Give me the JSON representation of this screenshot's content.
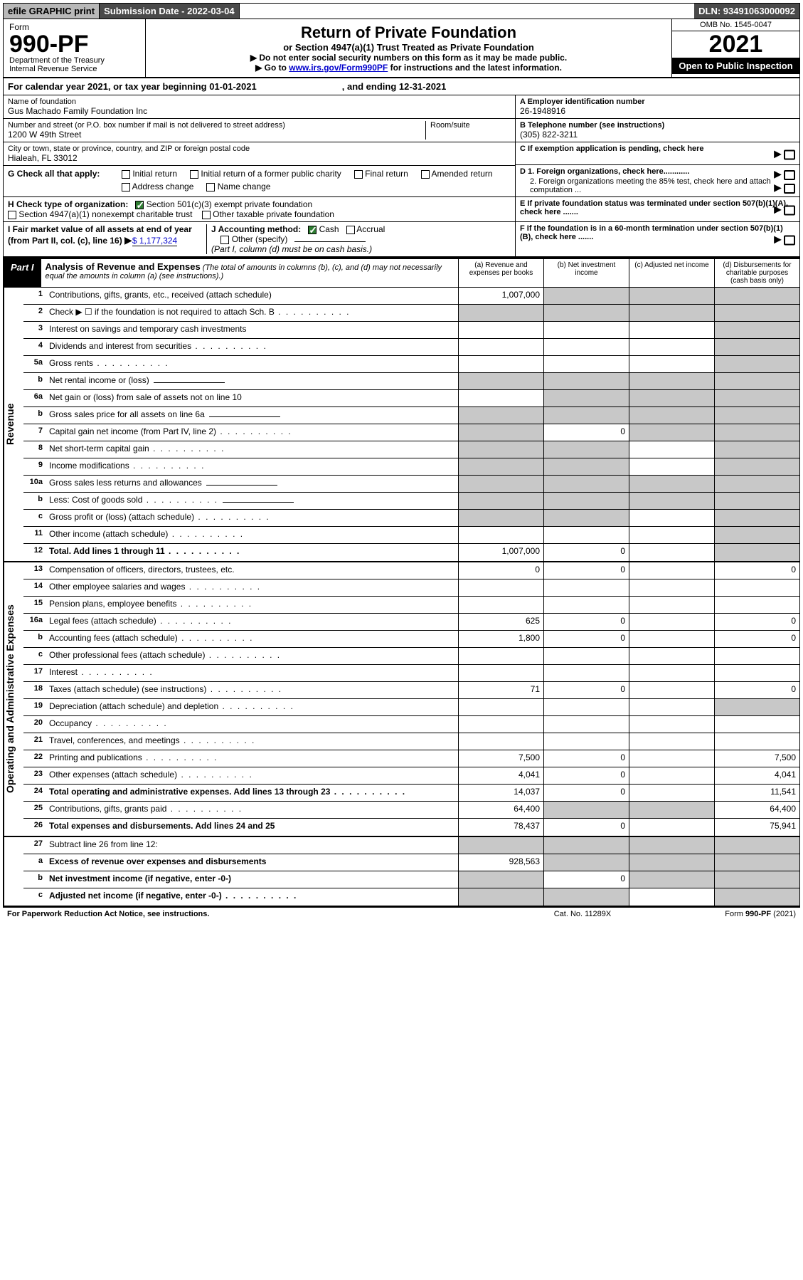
{
  "topbar": {
    "efile": "efile GRAPHIC print",
    "submission_label": "Submission Date - 2022-03-04",
    "dln": "DLN: 93491063000092"
  },
  "header": {
    "form_word": "Form",
    "form_num": "990-PF",
    "dept": "Department of the Treasury",
    "irs": "Internal Revenue Service",
    "title": "Return of Private Foundation",
    "subtitle": "or Section 4947(a)(1) Trust Treated as Private Foundation",
    "note1": "▶ Do not enter social security numbers on this form as it may be made public.",
    "note2_pre": "▶ Go to ",
    "note2_link": "www.irs.gov/Form990PF",
    "note2_post": " for instructions and the latest information.",
    "omb": "OMB No. 1545-0047",
    "year": "2021",
    "open": "Open to Public Inspection"
  },
  "calendar": {
    "text": "For calendar year 2021, or tax year beginning 01-01-2021",
    "ending": ", and ending 12-31-2021"
  },
  "identity": {
    "name_label": "Name of foundation",
    "name": "Gus Machado Family Foundation Inc",
    "addr_label": "Number and street (or P.O. box number if mail is not delivered to street address)",
    "addr": "1200 W 49th Street",
    "room_label": "Room/suite",
    "city_label": "City or town, state or province, country, and ZIP or foreign postal code",
    "city": "Hialeah, FL  33012",
    "a_label": "A Employer identification number",
    "a_val": "26-1948916",
    "b_label": "B Telephone number (see instructions)",
    "b_val": "(305) 822-3211",
    "c_label": "C If exemption application is pending, check here",
    "d1_label": "D 1. Foreign organizations, check here............",
    "d2_label": "2. Foreign organizations meeting the 85% test, check here and attach computation ...",
    "e_label": "E  If private foundation status was terminated under section 507(b)(1)(A), check here .......",
    "f_label": "F  If the foundation is in a 60-month termination under section 507(b)(1)(B), check here ......."
  },
  "g": {
    "label": "G Check all that apply:",
    "opts": [
      "Initial return",
      "Final return",
      "Address change",
      "Initial return of a former public charity",
      "Amended return",
      "Name change"
    ]
  },
  "h": {
    "label": "H Check type of organization:",
    "o1": "Section 501(c)(3) exempt private foundation",
    "o2": "Section 4947(a)(1) nonexempt charitable trust",
    "o3": "Other taxable private foundation"
  },
  "i": {
    "label": "I Fair market value of all assets at end of year (from Part II, col. (c), line 16)",
    "val": "$  1,177,324"
  },
  "j": {
    "label": "J Accounting method:",
    "o1": "Cash",
    "o2": "Accrual",
    "o3": "Other (specify)",
    "note": "(Part I, column (d) must be on cash basis.)"
  },
  "part1": {
    "tag": "Part I",
    "title": "Analysis of Revenue and Expenses",
    "sub": "(The total of amounts in columns (b), (c), and (d) may not necessarily equal the amounts in column (a) (see instructions).)",
    "cols": {
      "a": "(a)   Revenue and expenses per books",
      "b": "(b)   Net investment income",
      "c": "(c)   Adjusted net income",
      "d": "(d)   Disbursements for charitable purposes (cash basis only)"
    }
  },
  "sections": {
    "revenue": "Revenue",
    "expenses": "Operating and Administrative Expenses"
  },
  "rows": [
    {
      "n": "1",
      "l": "Contributions, gifts, grants, etc., received (attach schedule)",
      "a": "1,007,000",
      "b": "shade",
      "c": "shade",
      "d": "shade"
    },
    {
      "n": "2",
      "l": "Check ▶ ☐ if the foundation is not required to attach Sch. B",
      "dot": 1,
      "a": "shade",
      "b": "shade",
      "c": "shade",
      "d": "shade"
    },
    {
      "n": "3",
      "l": "Interest on savings and temporary cash investments",
      "a": "",
      "b": "",
      "c": "",
      "d": "shade"
    },
    {
      "n": "4",
      "l": "Dividends and interest from securities",
      "dot": 1,
      "a": "",
      "b": "",
      "c": "",
      "d": "shade"
    },
    {
      "n": "5a",
      "l": "Gross rents",
      "dot": 1,
      "a": "",
      "b": "",
      "c": "",
      "d": "shade"
    },
    {
      "n": "b",
      "l": "Net rental income or (loss)",
      "inner": 1,
      "a": "shade",
      "b": "shade",
      "c": "shade",
      "d": "shade"
    },
    {
      "n": "6a",
      "l": "Net gain or (loss) from sale of assets not on line 10",
      "a": "",
      "b": "shade",
      "c": "shade",
      "d": "shade"
    },
    {
      "n": "b",
      "l": "Gross sales price for all assets on line 6a",
      "inner": 1,
      "a": "shade",
      "b": "shade",
      "c": "shade",
      "d": "shade"
    },
    {
      "n": "7",
      "l": "Capital gain net income (from Part IV, line 2)",
      "dot": 1,
      "a": "shade",
      "b": "0",
      "c": "shade",
      "d": "shade"
    },
    {
      "n": "8",
      "l": "Net short-term capital gain",
      "dot": 1,
      "a": "shade",
      "b": "shade",
      "c": "",
      "d": "shade"
    },
    {
      "n": "9",
      "l": "Income modifications",
      "dot": 1,
      "a": "shade",
      "b": "shade",
      "c": "",
      "d": "shade"
    },
    {
      "n": "10a",
      "l": "Gross sales less returns and allowances",
      "inner": 1,
      "a": "shade",
      "b": "shade",
      "c": "shade",
      "d": "shade"
    },
    {
      "n": "b",
      "l": "Less: Cost of goods sold",
      "dot": 1,
      "inner": 1,
      "a": "shade",
      "b": "shade",
      "c": "shade",
      "d": "shade"
    },
    {
      "n": "c",
      "l": "Gross profit or (loss) (attach schedule)",
      "dot": 1,
      "a": "shade",
      "b": "shade",
      "c": "",
      "d": "shade"
    },
    {
      "n": "11",
      "l": "Other income (attach schedule)",
      "dot": 1,
      "a": "",
      "b": "",
      "c": "",
      "d": "shade"
    },
    {
      "n": "12",
      "l": "Total. Add lines 1 through 11",
      "bold": 1,
      "dot": 1,
      "a": "1,007,000",
      "b": "0",
      "c": "",
      "d": "shade"
    }
  ],
  "rows_exp": [
    {
      "n": "13",
      "l": "Compensation of officers, directors, trustees, etc.",
      "a": "0",
      "b": "0",
      "c": "",
      "d": "0"
    },
    {
      "n": "14",
      "l": "Other employee salaries and wages",
      "dot": 1,
      "a": "",
      "b": "",
      "c": "",
      "d": ""
    },
    {
      "n": "15",
      "l": "Pension plans, employee benefits",
      "dot": 1,
      "a": "",
      "b": "",
      "c": "",
      "d": ""
    },
    {
      "n": "16a",
      "l": "Legal fees (attach schedule)",
      "dot": 1,
      "a": "625",
      "b": "0",
      "c": "",
      "d": "0"
    },
    {
      "n": "b",
      "l": "Accounting fees (attach schedule)",
      "dot": 1,
      "a": "1,800",
      "b": "0",
      "c": "",
      "d": "0"
    },
    {
      "n": "c",
      "l": "Other professional fees (attach schedule)",
      "dot": 1,
      "a": "",
      "b": "",
      "c": "",
      "d": ""
    },
    {
      "n": "17",
      "l": "Interest",
      "dot": 1,
      "a": "",
      "b": "",
      "c": "",
      "d": ""
    },
    {
      "n": "18",
      "l": "Taxes (attach schedule) (see instructions)",
      "dot": 1,
      "a": "71",
      "b": "0",
      "c": "",
      "d": "0"
    },
    {
      "n": "19",
      "l": "Depreciation (attach schedule) and depletion",
      "dot": 1,
      "a": "",
      "b": "",
      "c": "",
      "d": "shade"
    },
    {
      "n": "20",
      "l": "Occupancy",
      "dot": 1,
      "a": "",
      "b": "",
      "c": "",
      "d": ""
    },
    {
      "n": "21",
      "l": "Travel, conferences, and meetings",
      "dot": 1,
      "a": "",
      "b": "",
      "c": "",
      "d": ""
    },
    {
      "n": "22",
      "l": "Printing and publications",
      "dot": 1,
      "a": "7,500",
      "b": "0",
      "c": "",
      "d": "7,500"
    },
    {
      "n": "23",
      "l": "Other expenses (attach schedule)",
      "dot": 1,
      "a": "4,041",
      "b": "0",
      "c": "",
      "d": "4,041"
    },
    {
      "n": "24",
      "l": "Total operating and administrative expenses. Add lines 13 through 23",
      "bold": 1,
      "dot": 1,
      "a": "14,037",
      "b": "0",
      "c": "",
      "d": "11,541"
    },
    {
      "n": "25",
      "l": "Contributions, gifts, grants paid",
      "dot": 1,
      "a": "64,400",
      "b": "shade",
      "c": "shade",
      "d": "64,400"
    },
    {
      "n": "26",
      "l": "Total expenses and disbursements. Add lines 24 and 25",
      "bold": 1,
      "a": "78,437",
      "b": "0",
      "c": "",
      "d": "75,941"
    }
  ],
  "rows_net": [
    {
      "n": "27",
      "l": "Subtract line 26 from line 12:",
      "a": "shade",
      "b": "shade",
      "c": "shade",
      "d": "shade"
    },
    {
      "n": "a",
      "l": "Excess of revenue over expenses and disbursements",
      "bold": 1,
      "a": "928,563",
      "b": "shade",
      "c": "shade",
      "d": "shade"
    },
    {
      "n": "b",
      "l": "Net investment income (if negative, enter -0-)",
      "bold": 1,
      "a": "shade",
      "b": "0",
      "c": "shade",
      "d": "shade"
    },
    {
      "n": "c",
      "l": "Adjusted net income (if negative, enter -0-)",
      "bold": 1,
      "dot": 1,
      "a": "shade",
      "b": "shade",
      "c": "",
      "d": "shade"
    }
  ],
  "footer": {
    "left": "For Paperwork Reduction Act Notice, see instructions.",
    "mid": "Cat. No. 11289X",
    "right": "Form 990-PF (2021)"
  },
  "colors": {
    "shade": "#c8c8c8",
    "link": "#0000cc",
    "topbar_gray": "#b8b8b8",
    "topbar_dark": "#4a4a4a"
  }
}
